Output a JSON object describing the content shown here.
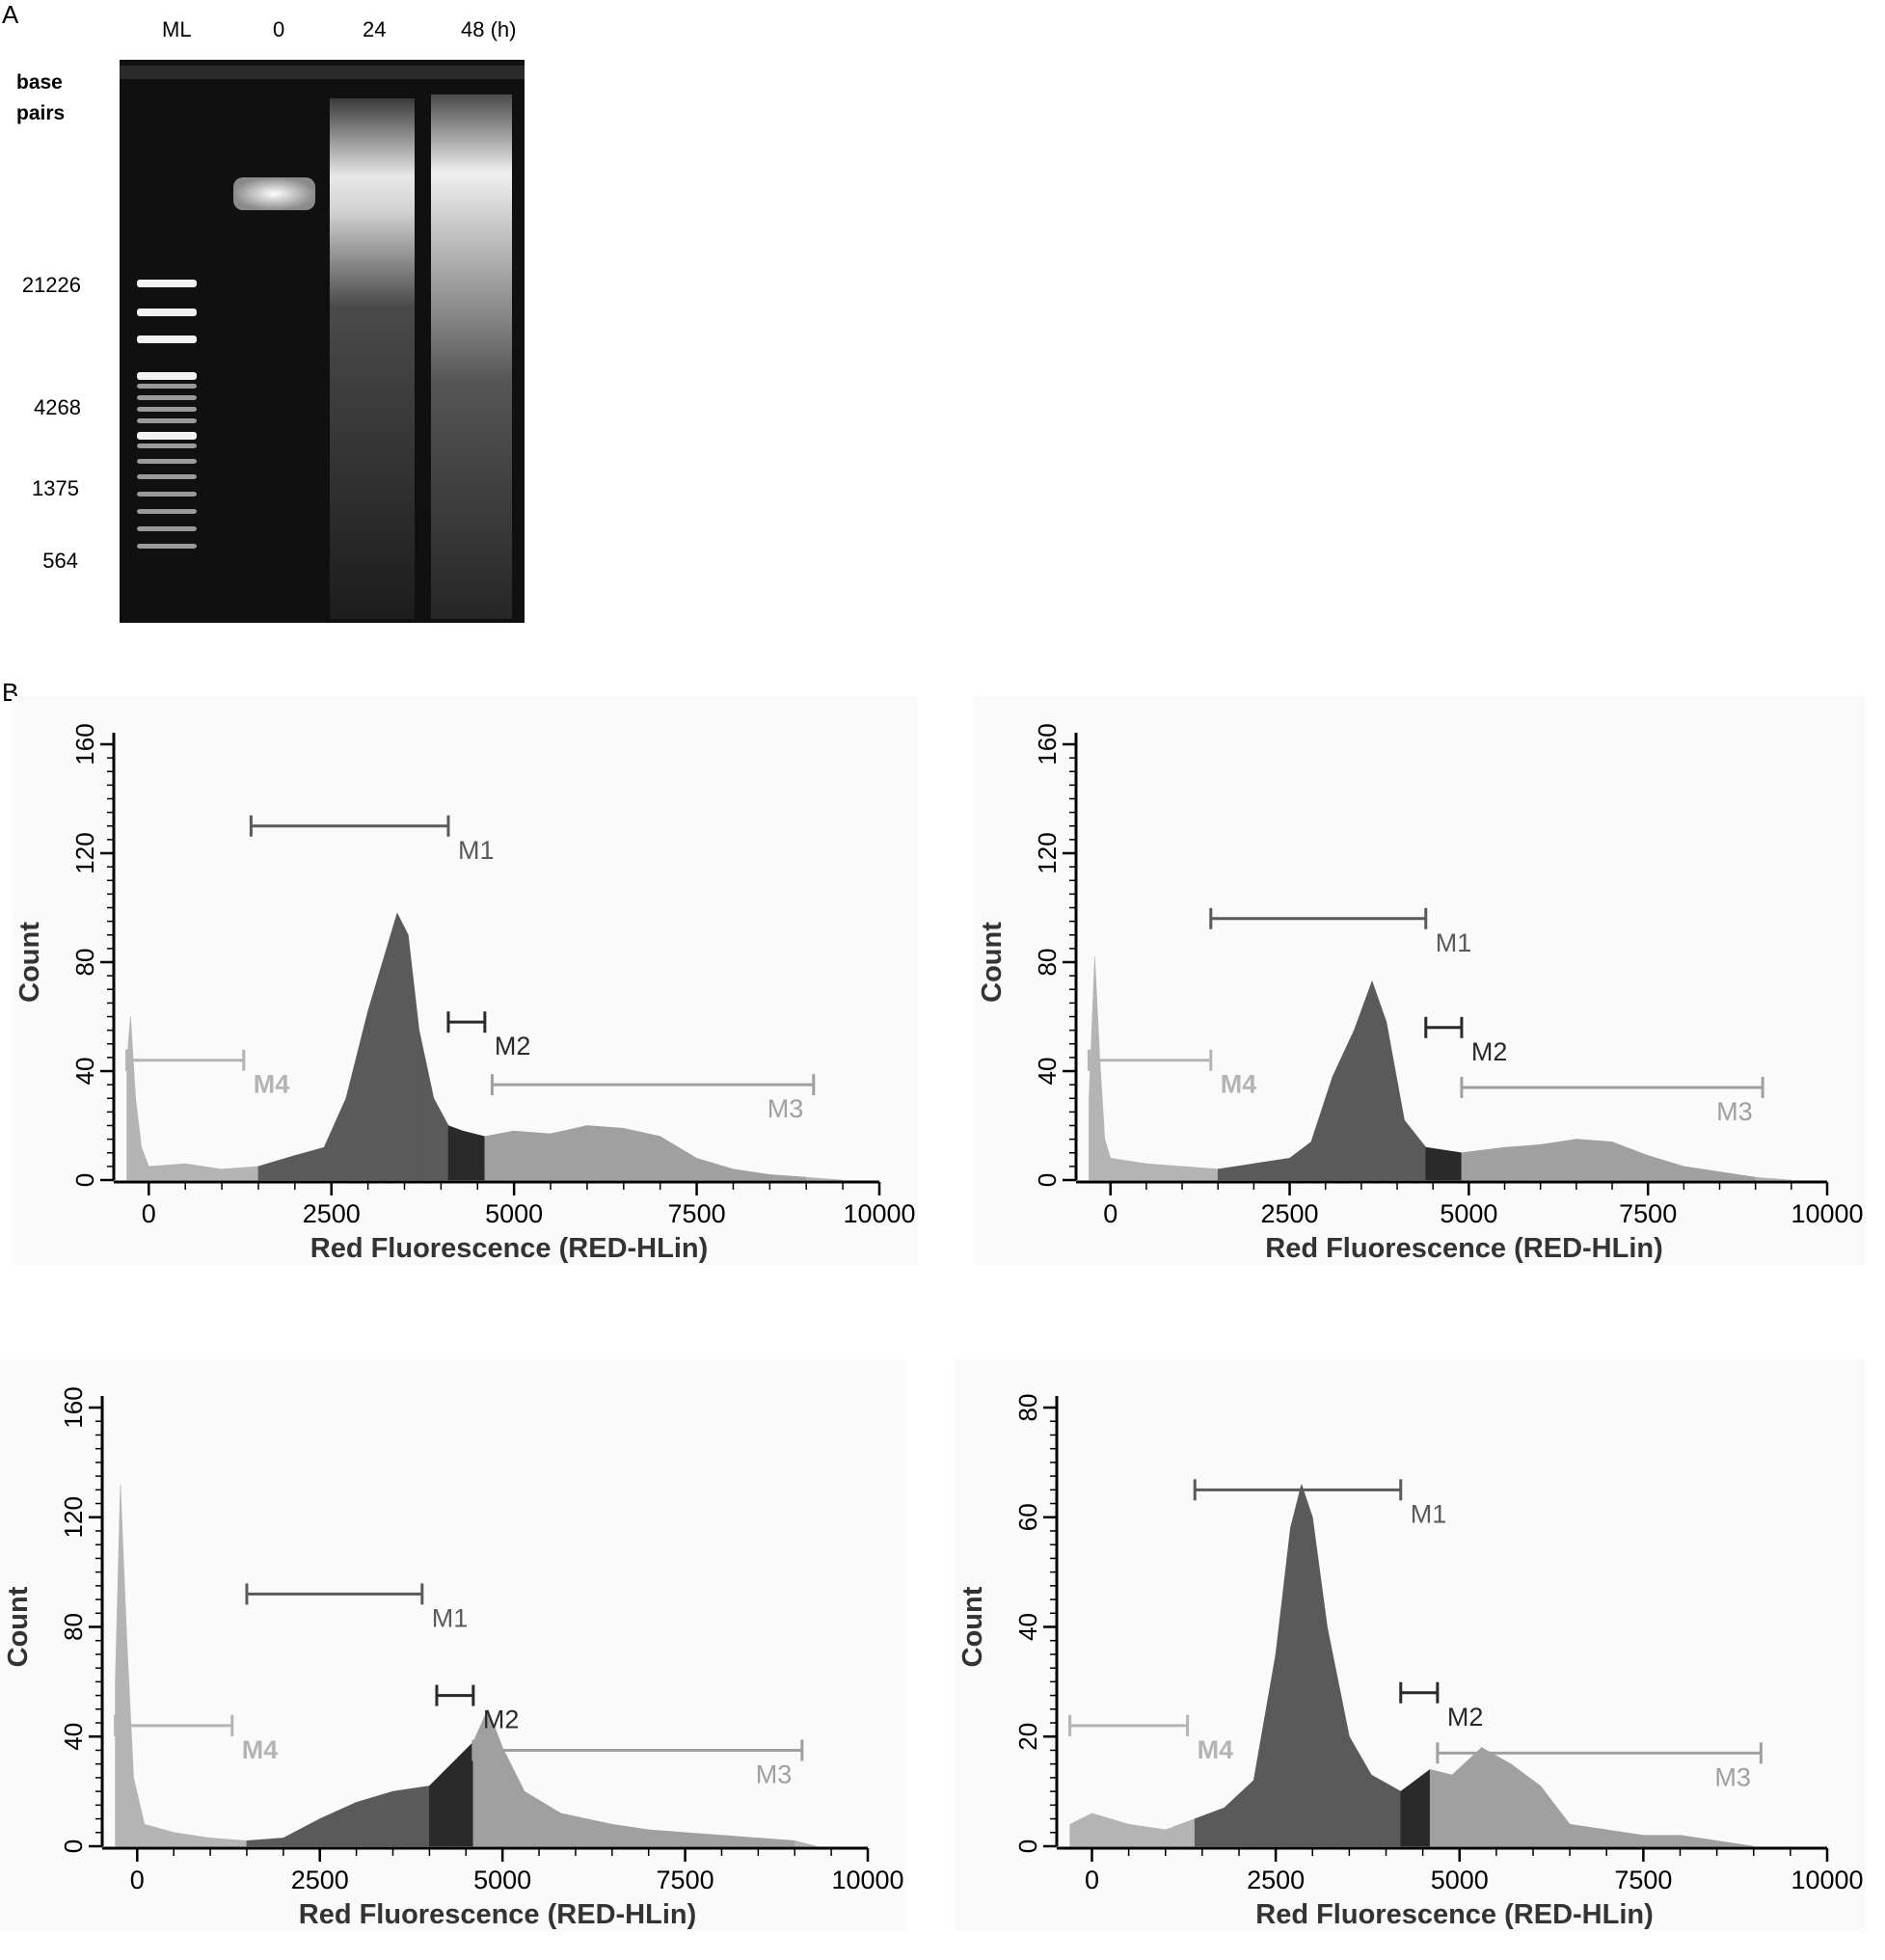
{
  "panel_a": {
    "letter": "A",
    "lanes": [
      "ML",
      "0",
      "24",
      "48 (h)"
    ],
    "bp_title_line1": "base",
    "bp_title_line2": "pairs",
    "bp_ticks": [
      "21226",
      "4268",
      "1375",
      "564"
    ]
  },
  "panel_b": {
    "letter": "B"
  },
  "chart_data": [
    {
      "type": "area",
      "title": "",
      "xlabel": "Red Fluorescence (RED-HLin)",
      "ylabel": "Count",
      "xlim": [
        -400,
        10000
      ],
      "ylim": [
        0,
        160
      ],
      "xticks": [
        "0",
        "2500",
        "5000",
        "7500",
        "10000"
      ],
      "yticks": [
        "0",
        "40",
        "80",
        "120",
        "160"
      ],
      "markers": [
        {
          "name": "M1",
          "start": 1400,
          "end": 4100,
          "y": 130,
          "color": "#5a5a5a"
        },
        {
          "name": "M2",
          "start": 4100,
          "end": 4600,
          "y": 58,
          "color": "#2a2a2a"
        },
        {
          "name": "M3",
          "start": 4700,
          "end": 9100,
          "y": 35,
          "color": "#a0a0a0"
        },
        {
          "name": "M4",
          "start": -300,
          "end": 1300,
          "y": 44,
          "color": "#b4b4b4"
        }
      ],
      "histogram": [
        {
          "x": -300,
          "y": 44
        },
        {
          "x": -250,
          "y": 60
        },
        {
          "x": -180,
          "y": 30
        },
        {
          "x": -100,
          "y": 12
        },
        {
          "x": 0,
          "y": 5
        },
        {
          "x": 500,
          "y": 6
        },
        {
          "x": 1000,
          "y": 4
        },
        {
          "x": 1500,
          "y": 5
        },
        {
          "x": 2000,
          "y": 9
        },
        {
          "x": 2400,
          "y": 12
        },
        {
          "x": 2700,
          "y": 30
        },
        {
          "x": 3000,
          "y": 62
        },
        {
          "x": 3200,
          "y": 80
        },
        {
          "x": 3400,
          "y": 98
        },
        {
          "x": 3550,
          "y": 90
        },
        {
          "x": 3700,
          "y": 55
        },
        {
          "x": 3900,
          "y": 30
        },
        {
          "x": 4100,
          "y": 20
        },
        {
          "x": 4300,
          "y": 18
        },
        {
          "x": 4600,
          "y": 16
        },
        {
          "x": 5000,
          "y": 18
        },
        {
          "x": 5500,
          "y": 17
        },
        {
          "x": 6000,
          "y": 20
        },
        {
          "x": 6500,
          "y": 19
        },
        {
          "x": 7000,
          "y": 16
        },
        {
          "x": 7500,
          "y": 8
        },
        {
          "x": 8000,
          "y": 4
        },
        {
          "x": 8500,
          "y": 2
        },
        {
          "x": 9000,
          "y": 1
        },
        {
          "x": 9500,
          "y": 0
        }
      ]
    },
    {
      "type": "area",
      "title": "",
      "xlabel": "Red Fluorescence (RED-HLin)",
      "ylabel": "Count",
      "xlim": [
        -400,
        10000
      ],
      "ylim": [
        0,
        160
      ],
      "xticks": [
        "0",
        "2500",
        "5000",
        "7500",
        "10000"
      ],
      "yticks": [
        "0",
        "40",
        "80",
        "120",
        "160"
      ],
      "markers": [
        {
          "name": "M1",
          "start": 1400,
          "end": 4400,
          "y": 96,
          "color": "#5a5a5a"
        },
        {
          "name": "M2",
          "start": 4400,
          "end": 4900,
          "y": 56,
          "color": "#2a2a2a"
        },
        {
          "name": "M3",
          "start": 4900,
          "end": 9100,
          "y": 34,
          "color": "#a0a0a0"
        },
        {
          "name": "M4",
          "start": -300,
          "end": 1400,
          "y": 44,
          "color": "#b4b4b4"
        }
      ],
      "histogram": [
        {
          "x": -300,
          "y": 30
        },
        {
          "x": -220,
          "y": 82
        },
        {
          "x": -150,
          "y": 45
        },
        {
          "x": -80,
          "y": 15
        },
        {
          "x": 0,
          "y": 8
        },
        {
          "x": 500,
          "y": 6
        },
        {
          "x": 1000,
          "y": 5
        },
        {
          "x": 1500,
          "y": 4
        },
        {
          "x": 2000,
          "y": 6
        },
        {
          "x": 2500,
          "y": 8
        },
        {
          "x": 2800,
          "y": 14
        },
        {
          "x": 3100,
          "y": 38
        },
        {
          "x": 3400,
          "y": 55
        },
        {
          "x": 3650,
          "y": 73
        },
        {
          "x": 3850,
          "y": 58
        },
        {
          "x": 4100,
          "y": 22
        },
        {
          "x": 4400,
          "y": 12
        },
        {
          "x": 4900,
          "y": 10
        },
        {
          "x": 5500,
          "y": 12
        },
        {
          "x": 6000,
          "y": 13
        },
        {
          "x": 6500,
          "y": 15
        },
        {
          "x": 7000,
          "y": 14
        },
        {
          "x": 7500,
          "y": 9
        },
        {
          "x": 8000,
          "y": 5
        },
        {
          "x": 8500,
          "y": 3
        },
        {
          "x": 9000,
          "y": 1
        },
        {
          "x": 9500,
          "y": 0
        }
      ]
    },
    {
      "type": "area",
      "title": "",
      "xlabel": "Red Fluorescence (RED-HLin)",
      "ylabel": "Count",
      "xlim": [
        -400,
        10000
      ],
      "ylim": [
        0,
        160
      ],
      "xticks": [
        "0",
        "2500",
        "5000",
        "7500",
        "10000"
      ],
      "yticks": [
        "0",
        "40",
        "80",
        "120",
        "160"
      ],
      "markers": [
        {
          "name": "M1",
          "start": 1500,
          "end": 3900,
          "y": 92,
          "color": "#5a5a5a"
        },
        {
          "name": "M2",
          "start": 4100,
          "end": 4600,
          "y": 55,
          "color": "#2a2a2a"
        },
        {
          "name": "M3",
          "start": 4600,
          "end": 9100,
          "y": 35,
          "color": "#a0a0a0"
        },
        {
          "name": "M4",
          "start": -300,
          "end": 1300,
          "y": 44,
          "color": "#b4b4b4"
        }
      ],
      "histogram": [
        {
          "x": -300,
          "y": 60
        },
        {
          "x": -230,
          "y": 132
        },
        {
          "x": -150,
          "y": 80
        },
        {
          "x": -50,
          "y": 25
        },
        {
          "x": 100,
          "y": 8
        },
        {
          "x": 500,
          "y": 5
        },
        {
          "x": 1000,
          "y": 3
        },
        {
          "x": 1500,
          "y": 2
        },
        {
          "x": 2000,
          "y": 3
        },
        {
          "x": 2500,
          "y": 10
        },
        {
          "x": 3000,
          "y": 16
        },
        {
          "x": 3500,
          "y": 20
        },
        {
          "x": 4000,
          "y": 22
        },
        {
          "x": 4300,
          "y": 30
        },
        {
          "x": 4600,
          "y": 38
        },
        {
          "x": 4800,
          "y": 50
        },
        {
          "x": 5000,
          "y": 36
        },
        {
          "x": 5300,
          "y": 20
        },
        {
          "x": 5800,
          "y": 12
        },
        {
          "x": 6500,
          "y": 8
        },
        {
          "x": 7000,
          "y": 6
        },
        {
          "x": 7500,
          "y": 5
        },
        {
          "x": 8000,
          "y": 4
        },
        {
          "x": 8500,
          "y": 3
        },
        {
          "x": 9000,
          "y": 2
        },
        {
          "x": 9300,
          "y": 0
        }
      ]
    },
    {
      "type": "area",
      "title": "",
      "xlabel": "Red Fluorescence (RED-HLin)",
      "ylabel": "Count",
      "xlim": [
        -400,
        10000
      ],
      "ylim": [
        0,
        80
      ],
      "xticks": [
        "0",
        "2500",
        "5000",
        "7500",
        "10000"
      ],
      "yticks": [
        "0",
        "20",
        "40",
        "60",
        "80"
      ],
      "markers": [
        {
          "name": "M1",
          "start": 1400,
          "end": 4200,
          "y": 65,
          "color": "#5a5a5a"
        },
        {
          "name": "M2",
          "start": 4200,
          "end": 4700,
          "y": 28,
          "color": "#2a2a2a"
        },
        {
          "name": "M3",
          "start": 4700,
          "end": 9100,
          "y": 17,
          "color": "#a0a0a0"
        },
        {
          "name": "M4",
          "start": -300,
          "end": 1300,
          "y": 22,
          "color": "#b4b4b4"
        }
      ],
      "histogram": [
        {
          "x": -300,
          "y": 4
        },
        {
          "x": 0,
          "y": 6
        },
        {
          "x": 500,
          "y": 4
        },
        {
          "x": 1000,
          "y": 3
        },
        {
          "x": 1400,
          "y": 5
        },
        {
          "x": 1800,
          "y": 7
        },
        {
          "x": 2200,
          "y": 12
        },
        {
          "x": 2500,
          "y": 35
        },
        {
          "x": 2700,
          "y": 58
        },
        {
          "x": 2850,
          "y": 66
        },
        {
          "x": 3000,
          "y": 60
        },
        {
          "x": 3200,
          "y": 40
        },
        {
          "x": 3500,
          "y": 20
        },
        {
          "x": 3800,
          "y": 13
        },
        {
          "x": 4200,
          "y": 10
        },
        {
          "x": 4600,
          "y": 14
        },
        {
          "x": 4900,
          "y": 13
        },
        {
          "x": 5300,
          "y": 18
        },
        {
          "x": 5700,
          "y": 15
        },
        {
          "x": 6100,
          "y": 11
        },
        {
          "x": 6500,
          "y": 4
        },
        {
          "x": 7000,
          "y": 3
        },
        {
          "x": 7500,
          "y": 2
        },
        {
          "x": 8000,
          "y": 2
        },
        {
          "x": 8500,
          "y": 1
        },
        {
          "x": 9000,
          "y": 0
        }
      ]
    }
  ]
}
